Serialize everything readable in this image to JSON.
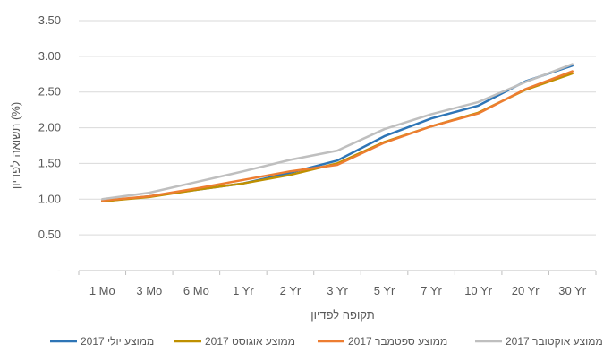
{
  "chart_data": {
    "type": "line",
    "categories": [
      "1 Mo",
      "3 Mo",
      "6 Mo",
      "1 Yr",
      "2 Yr",
      "3 Yr",
      "5 Yr",
      "7 Yr",
      "10 Yr",
      "20 Yr",
      "30 Yr"
    ],
    "y_ticks": [
      "-",
      "0.50",
      "1.00",
      "1.50",
      "2.00",
      "2.50",
      "3.00",
      "3.50"
    ],
    "ylim": [
      0,
      3.5
    ],
    "ylabel": "תשואה לפדיון (%)",
    "xlabel": "תקופה לפדיון",
    "grid": "horizontal",
    "legend_position": "bottom",
    "series": [
      {
        "name": "ממוצע יולי 2017",
        "color": "#2E75B6",
        "values": [
          0.97,
          1.04,
          1.13,
          1.22,
          1.37,
          1.54,
          1.88,
          2.13,
          2.31,
          2.65,
          2.87
        ]
      },
      {
        "name": "ממוצע אוגוסט 2017",
        "color": "#BF9000",
        "values": [
          0.97,
          1.03,
          1.13,
          1.22,
          1.34,
          1.5,
          1.8,
          2.02,
          2.21,
          2.53,
          2.76
        ]
      },
      {
        "name": "ממוצע ספטמבר 2017",
        "color": "#ED7D31",
        "values": [
          0.98,
          1.04,
          1.15,
          1.27,
          1.39,
          1.48,
          1.79,
          2.02,
          2.2,
          2.54,
          2.79
        ]
      },
      {
        "name": "ממוצע אוקטובר 2017",
        "color": "#BFBFBF",
        "values": [
          1.0,
          1.09,
          1.24,
          1.39,
          1.55,
          1.68,
          1.98,
          2.19,
          2.36,
          2.64,
          2.89
        ]
      }
    ]
  }
}
